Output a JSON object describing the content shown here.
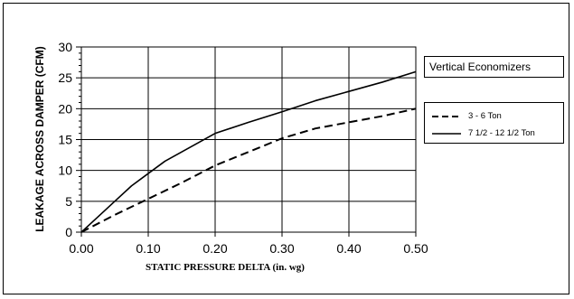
{
  "chart_data": {
    "type": "line",
    "title": "Vertical Economizers",
    "xlabel": "STATIC PRESSURE DELTA (in. wg)",
    "ylabel": "LEAKAGE ACROSS DAMPER (CFM)",
    "xlim": [
      0,
      0.5
    ],
    "ylim": [
      0,
      30
    ],
    "xticks": [
      "0.00",
      "0.10",
      "0.20",
      "0.30",
      "0.40",
      "0.50"
    ],
    "yticks": [
      "0",
      "5",
      "10",
      "15",
      "20",
      "25",
      "30"
    ],
    "grid": true,
    "legend_position": "right",
    "series": [
      {
        "name": "3 - 6 Ton",
        "style": "dashed",
        "color": "#000000",
        "x": [
          0,
          0.05,
          0.1,
          0.15,
          0.2,
          0.25,
          0.3,
          0.35,
          0.4,
          0.45,
          0.5
        ],
        "y": [
          0,
          2.8,
          5.4,
          8.0,
          10.8,
          13.0,
          15.2,
          16.8,
          17.8,
          18.8,
          20.0
        ]
      },
      {
        "name": "7 1/2 - 12 1/2 Ton",
        "style": "solid",
        "color": "#000000",
        "x": [
          0,
          0.025,
          0.05,
          0.075,
          0.1,
          0.125,
          0.15,
          0.175,
          0.2,
          0.25,
          0.3,
          0.35,
          0.4,
          0.45,
          0.5
        ],
        "y": [
          0,
          2.5,
          5.0,
          7.5,
          9.5,
          11.5,
          13.0,
          14.5,
          16.0,
          17.8,
          19.5,
          21.3,
          22.8,
          24.3,
          26.0
        ]
      }
    ]
  }
}
